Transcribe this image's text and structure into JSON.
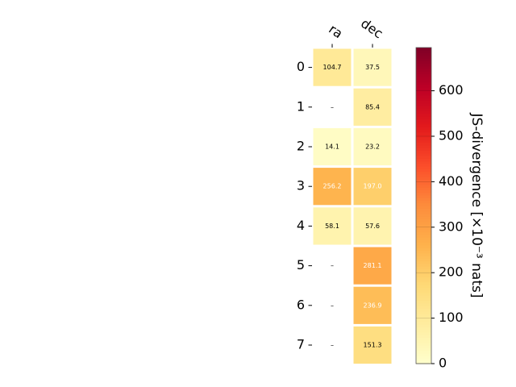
{
  "chart_data": {
    "type": "heatmap",
    "columns": [
      "ra",
      "dec"
    ],
    "rows": [
      "0",
      "1",
      "2",
      "3",
      "4",
      "5",
      "6",
      "7"
    ],
    "values": [
      [
        104.7,
        37.5
      ],
      [
        null,
        85.4
      ],
      [
        14.1,
        23.2
      ],
      [
        256.2,
        197.0
      ],
      [
        58.1,
        57.6
      ],
      [
        null,
        281.1
      ],
      [
        null,
        236.9
      ],
      [
        null,
        151.3
      ]
    ],
    "cell_labels": [
      [
        "104.7",
        "37.5"
      ],
      [
        "–",
        "85.4"
      ],
      [
        "14.1",
        "23.2"
      ],
      [
        "256.2",
        "197.0"
      ],
      [
        "58.1",
        "57.6"
      ],
      [
        "–",
        "281.1"
      ],
      [
        "–",
        "236.9"
      ],
      [
        "–",
        "151.3"
      ]
    ],
    "colormap": "YlOrRd",
    "vmin": 0,
    "vmax": 695,
    "colorbar": {
      "ticks": [
        0,
        100,
        200,
        300,
        400,
        500,
        600
      ],
      "tick_labels": [
        "0",
        "100",
        "200",
        "300",
        "400",
        "500",
        "600"
      ],
      "label": "JS-divergence [×10⁻³ nats]"
    }
  }
}
